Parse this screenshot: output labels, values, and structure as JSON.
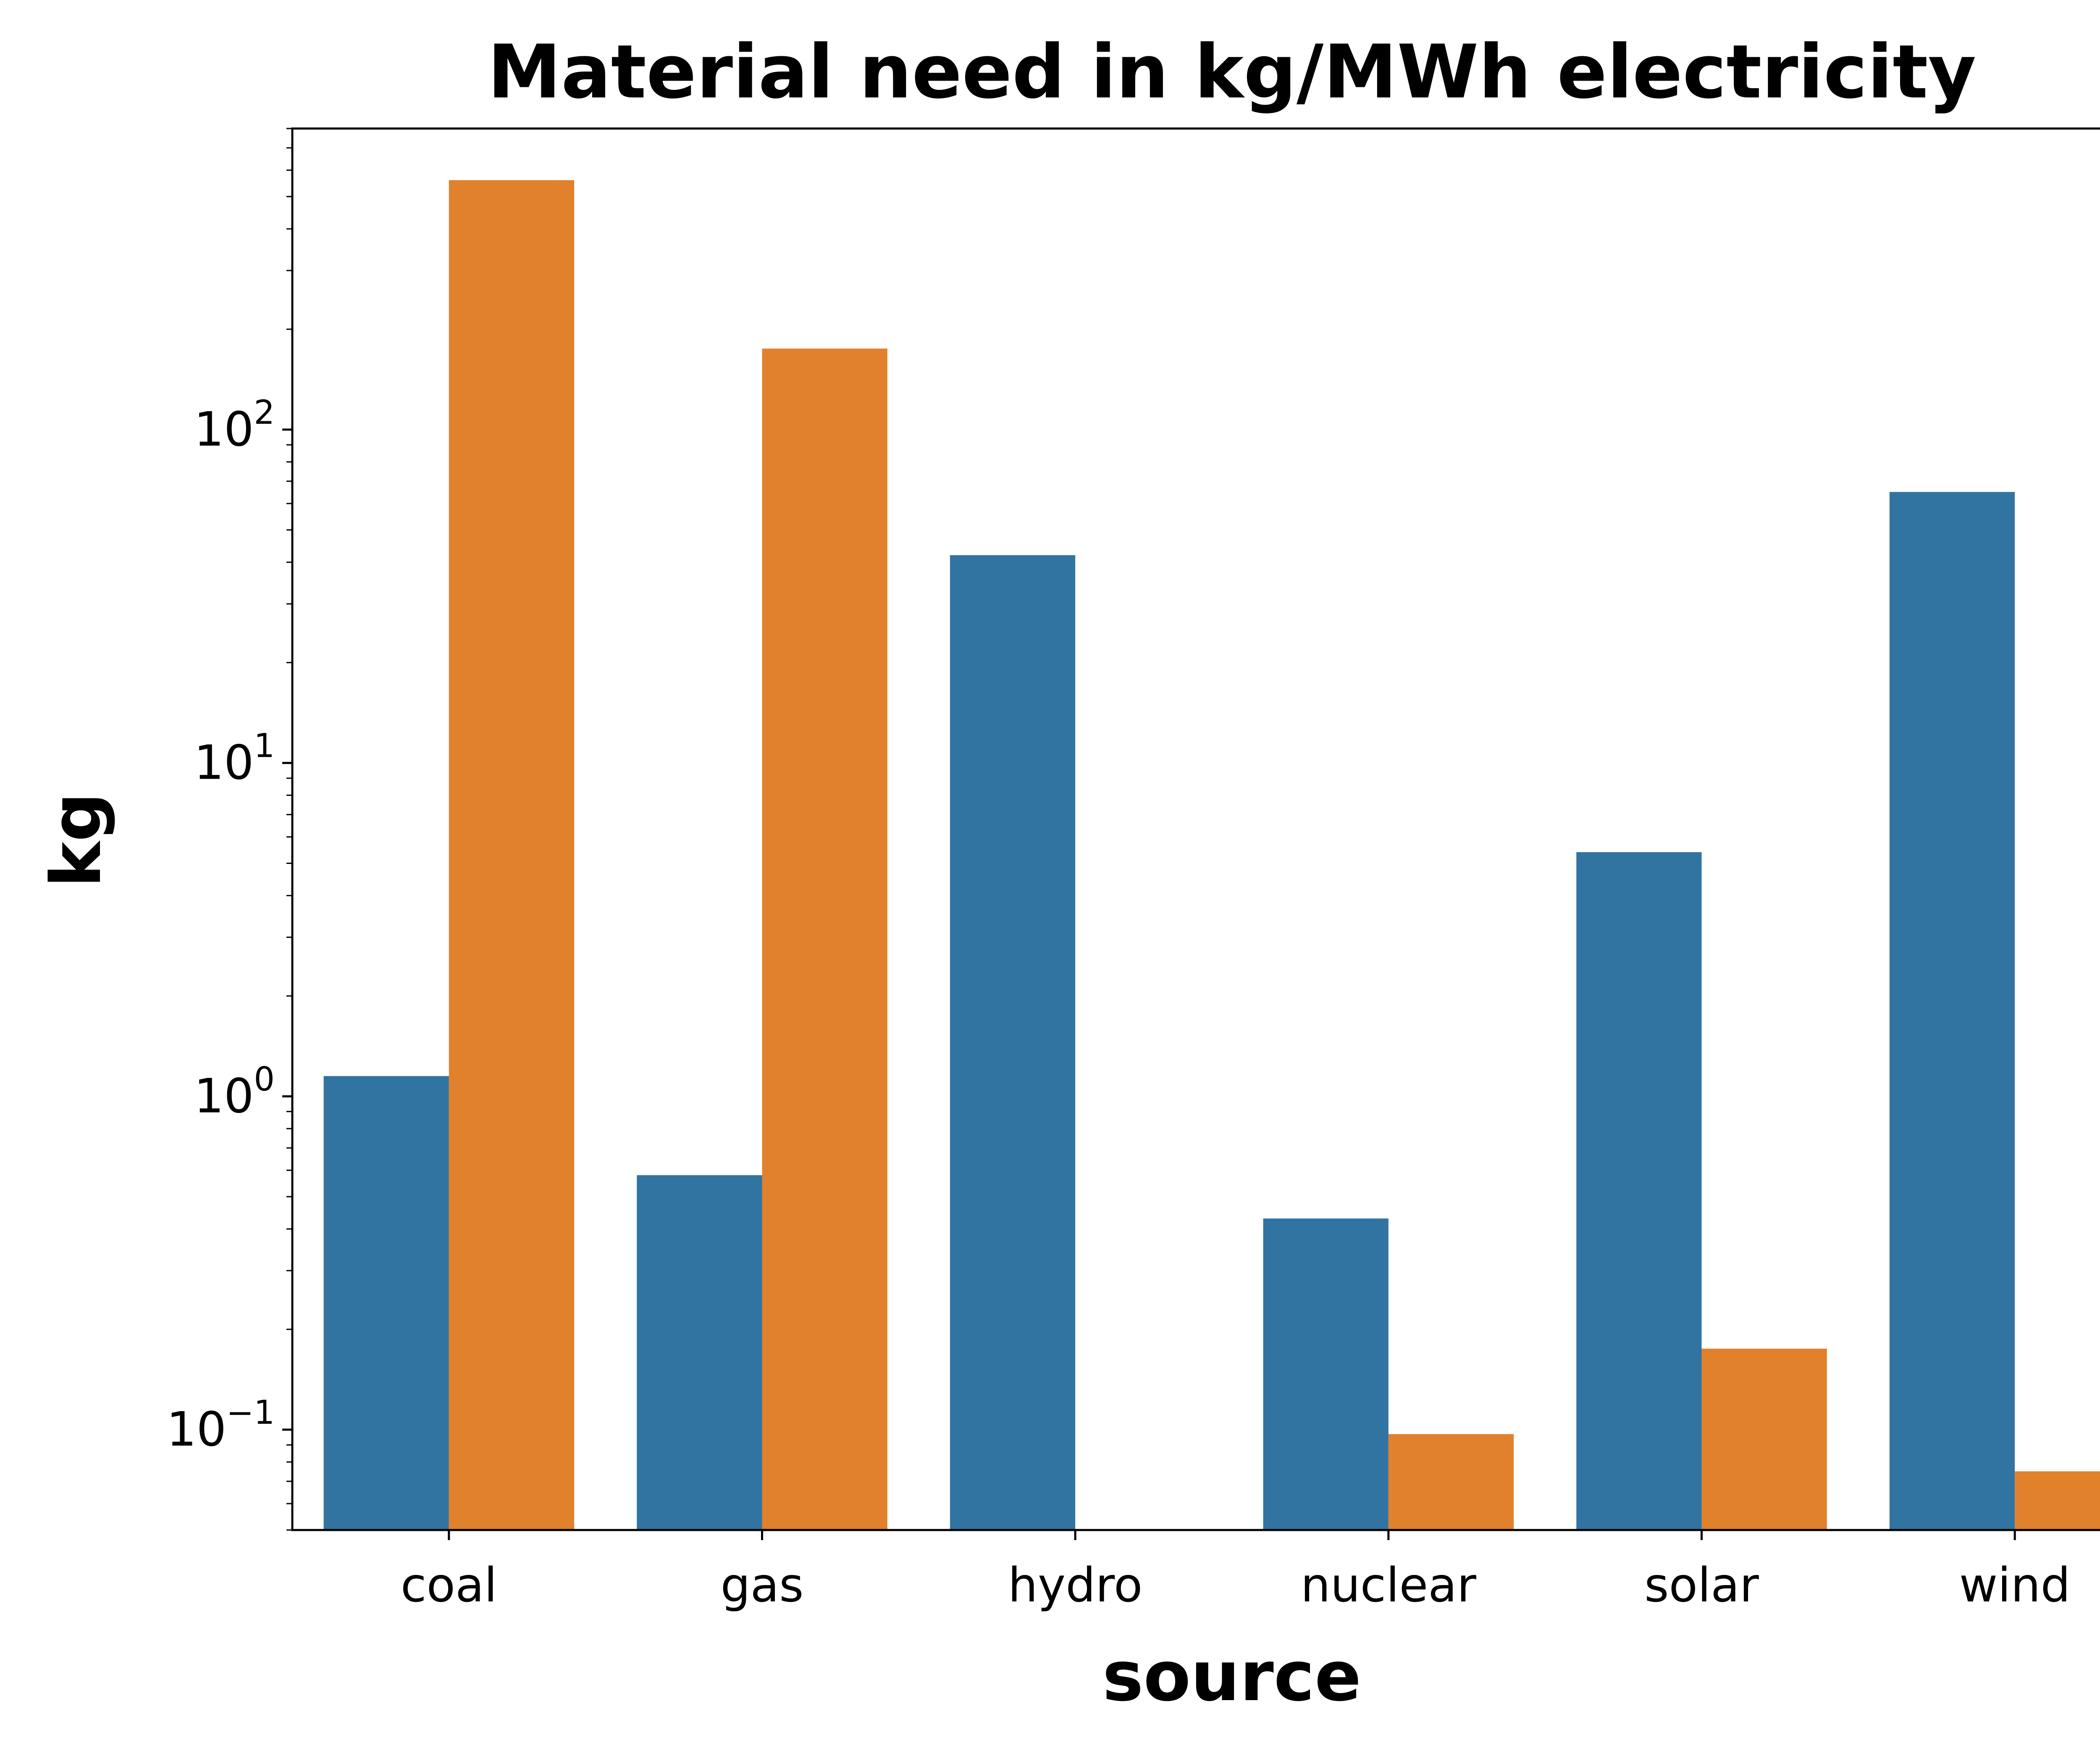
{
  "chart_data": {
    "type": "bar",
    "title": "Material need in kg/MWh  electricity",
    "xlabel": "source",
    "ylabel": "kg",
    "yscale": "log",
    "ylim": [
      0.05,
      800
    ],
    "yticks": [
      {
        "value": 0.1,
        "base": "10",
        "exp": "−1"
      },
      {
        "value": 1,
        "base": "10",
        "exp": "0"
      },
      {
        "value": 10,
        "base": "10",
        "exp": "1"
      },
      {
        "value": 100,
        "base": "10",
        "exp": "2"
      }
    ],
    "categories": [
      "coal",
      "gas",
      "hydro",
      "nuclear",
      "solar",
      "wind"
    ],
    "series": [
      {
        "color": "#3274a1",
        "values": [
          1.15,
          0.58,
          42,
          0.43,
          5.4,
          65
        ]
      },
      {
        "color": "#e1812c",
        "values": [
          560,
          175,
          null,
          0.097,
          0.175,
          0.075
        ]
      }
    ],
    "grid": false,
    "legend": "none"
  }
}
